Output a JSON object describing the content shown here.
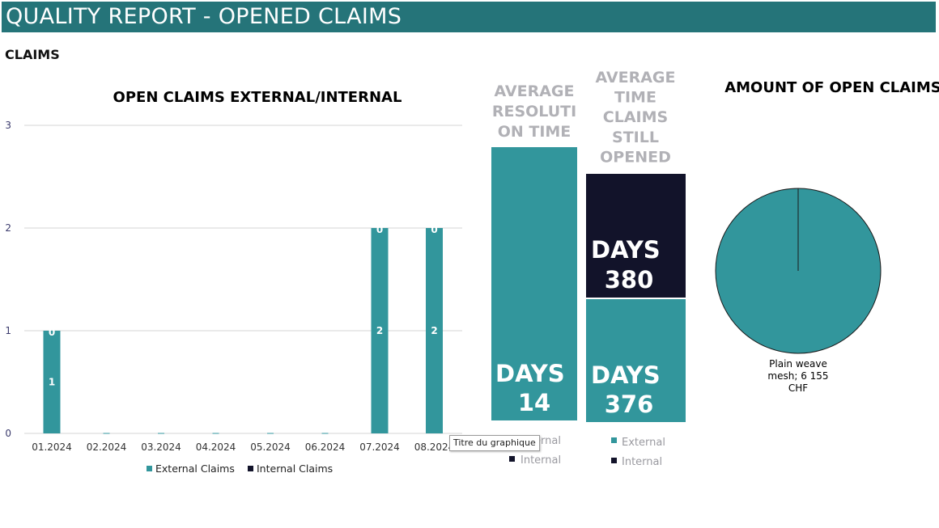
{
  "page": {
    "title": "QUALITY REPORT - OPENED CLAIMS",
    "section_label": "CLAIMS",
    "tooltip": "Titre du graphique"
  },
  "colors": {
    "title_bar": "#257479",
    "external": "#32969C",
    "internal": "#12132A",
    "grid": "#d6d6d6"
  },
  "chart_data": [
    {
      "type": "bar",
      "stacked": true,
      "title": "OPEN CLAIMS EXTERNAL/INTERNAL",
      "categories": [
        "01.2024",
        "02.2024",
        "03.2024",
        "04.2024",
        "05.2024",
        "06.2024",
        "07.2024",
        "08.2024"
      ],
      "series": [
        {
          "name": "External Claims",
          "values": [
            1,
            0,
            0,
            0,
            0,
            0,
            2,
            2
          ]
        },
        {
          "name": "Internal Claims",
          "values": [
            0,
            0,
            0,
            0,
            0,
            0,
            0,
            0
          ]
        }
      ],
      "data_labels": {
        "external": [
          "1",
          "",
          "",
          "",
          "",
          "",
          "2",
          "2"
        ],
        "internal": [
          "0",
          "",
          "",
          "",
          "",
          "",
          "0",
          "0"
        ]
      },
      "ylim": [
        0,
        3
      ],
      "yticks": [
        "0",
        "1",
        "2",
        "3"
      ],
      "grid": true,
      "legend": "bottom"
    },
    {
      "type": "bar",
      "stacked": true,
      "title": "AVERAGE RESOLUTION TIME",
      "title_lines": [
        "AVERAGE",
        "RESOLUTI",
        "ON TIME"
      ],
      "series": [
        {
          "name": "External",
          "values": [
            14
          ],
          "label_lines": [
            "DAYS",
            "14"
          ]
        },
        {
          "name": "Internal",
          "values": [
            0
          ]
        }
      ],
      "legend_visible": [
        "ernal",
        "Internal"
      ],
      "legend": "bottom"
    },
    {
      "type": "bar",
      "stacked": true,
      "title": "AVERAGE TIME CLAIMS STILL OPENED",
      "title_lines": [
        "AVERAGE",
        "TIME",
        "CLAIMS",
        "STILL",
        "OPENED"
      ],
      "series": [
        {
          "name": "External",
          "values": [
            376
          ],
          "label_lines": [
            "DAYS",
            "376"
          ]
        },
        {
          "name": "Internal",
          "values": [
            380
          ],
          "label_lines": [
            "DAYS",
            "380"
          ]
        }
      ],
      "legend": "bottom"
    },
    {
      "type": "pie",
      "title": "AMOUNT OF OPEN CLAIMS",
      "slices": [
        {
          "label": "Plain weave mesh",
          "value": 6155,
          "unit": "CHF"
        }
      ],
      "label_lines": [
        "Plain weave",
        "mesh; 6 155",
        "CHF"
      ]
    }
  ]
}
